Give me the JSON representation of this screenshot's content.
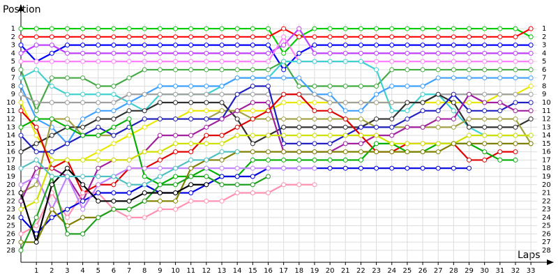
{
  "chart_data": {
    "type": "line",
    "x_label": "Laps",
    "y_label": "Position",
    "x": [
      0,
      1,
      2,
      3,
      4,
      5,
      6,
      7,
      8,
      9,
      10,
      11,
      12,
      13,
      14,
      15,
      16,
      17,
      18,
      19,
      20,
      21,
      22,
      23,
      24,
      25,
      26,
      27,
      28,
      29,
      30,
      31,
      32,
      33
    ],
    "xlim": [
      0,
      33.4
    ],
    "xticks": [
      1,
      2,
      3,
      4,
      5,
      6,
      7,
      8,
      9,
      10,
      11,
      12,
      13,
      14,
      15,
      16,
      17,
      18,
      19,
      20,
      21,
      22,
      23,
      24,
      25,
      26,
      27,
      28,
      29,
      30,
      31,
      32,
      33
    ],
    "ylim": [
      28.6,
      0.4
    ],
    "yticks": [
      1,
      2,
      3,
      4,
      5,
      6,
      7,
      8,
      9,
      10,
      11,
      12,
      13,
      14,
      15,
      16,
      17,
      18,
      19,
      20,
      21,
      22,
      23,
      24,
      25,
      26,
      27,
      28
    ],
    "grid": true,
    "series": [
      {
        "color": "#00cc00",
        "values": [
          1,
          1,
          1,
          1,
          1,
          1,
          1,
          1,
          1,
          1,
          1,
          1,
          1,
          1,
          1,
          1,
          1,
          4,
          2,
          1,
          1,
          1,
          1,
          1,
          1,
          1,
          1,
          1,
          1,
          1,
          1,
          1,
          1,
          2
        ]
      },
      {
        "color": "#ff0000",
        "values": [
          2,
          2,
          2,
          2,
          2,
          2,
          2,
          2,
          2,
          2,
          2,
          2,
          2,
          2,
          2,
          2,
          2,
          1,
          2,
          2,
          2,
          2,
          2,
          2,
          2,
          2,
          2,
          2,
          2,
          2,
          2,
          2,
          2,
          1
        ]
      },
      {
        "color": "#0000ff",
        "values": [
          3,
          5,
          4,
          3,
          3,
          3,
          3,
          3,
          3,
          3,
          3,
          3,
          3,
          3,
          3,
          3,
          3,
          6,
          4,
          3,
          3,
          3,
          3,
          3,
          3,
          3,
          3,
          3,
          3,
          3,
          3,
          3,
          3,
          3
        ]
      },
      {
        "color": "#c040ff",
        "values": [
          4,
          3,
          3,
          4,
          4,
          4,
          4,
          4,
          4,
          4,
          4,
          4,
          4,
          4,
          4,
          4,
          4,
          3,
          1,
          4,
          4,
          4,
          4,
          4,
          4,
          4,
          4,
          4,
          4,
          4,
          4,
          4,
          4,
          4
        ]
      },
      {
        "color": "#ff80ff",
        "values": [
          5,
          5,
          5,
          5,
          5,
          5,
          5,
          5,
          5,
          5,
          5,
          5,
          5,
          5,
          5,
          5,
          5,
          2,
          5,
          5,
          5,
          5,
          5,
          5,
          5,
          5,
          5,
          5,
          5,
          5,
          5,
          5,
          5,
          5
        ]
      },
      {
        "color": "#44aa44",
        "values": [
          6,
          11,
          7,
          7,
          7,
          8,
          8,
          7,
          6,
          6,
          6,
          6,
          6,
          6,
          6,
          6,
          6,
          5,
          8,
          8,
          8,
          8,
          8,
          8,
          6,
          6,
          6,
          6,
          6,
          6,
          6,
          6,
          6,
          6
        ]
      },
      {
        "color": "#40d0d0",
        "values": [
          7,
          6,
          8,
          9,
          9,
          9,
          9,
          10,
          11,
          9,
          9,
          9,
          9,
          8,
          7,
          7,
          7,
          5,
          5,
          5,
          5,
          5,
          5,
          6,
          11,
          11,
          9,
          9,
          11,
          13,
          14,
          14,
          14,
          14
        ]
      },
      {
        "color": "#40a0ff",
        "values": [
          8,
          12,
          13,
          15,
          12,
          11,
          11,
          10,
          9,
          8,
          8,
          8,
          8,
          8,
          7,
          7,
          7,
          7,
          7,
          9,
          9,
          11,
          11,
          9,
          8,
          8,
          8,
          7,
          7,
          7,
          7,
          7,
          7,
          7
        ]
      },
      {
        "color": "#e8e800",
        "values": [
          10,
          14,
          17,
          17,
          17,
          16,
          15,
          14,
          13,
          12,
          12,
          11,
          11,
          11,
          11,
          11,
          11,
          10,
          10,
          10,
          10,
          10,
          10,
          10,
          10,
          10,
          10,
          10,
          10,
          10,
          10,
          9,
          9,
          8
        ]
      },
      {
        "color": "#a0a0a0",
        "values": [
          9,
          10,
          10,
          10,
          10,
          10,
          10,
          9,
          9,
          9,
          9,
          9,
          9,
          9,
          9,
          9,
          9,
          9,
          9,
          9,
          10,
          10,
          10,
          10,
          10,
          10,
          10,
          9,
          9,
          9,
          9,
          9,
          9,
          9
        ]
      },
      {
        "color": "#303030",
        "values": [
          16,
          15,
          14,
          13,
          13,
          12,
          12,
          11,
          11,
          10,
          10,
          10,
          10,
          10,
          12,
          15,
          14,
          13,
          13,
          13,
          13,
          13,
          13,
          12,
          12,
          10,
          10,
          9,
          10,
          13,
          13,
          13,
          13,
          12
        ]
      },
      {
        "color": "#a0a040",
        "values": [
          21,
          20,
          12,
          12,
          14,
          14,
          14,
          13,
          12,
          12,
          12,
          12,
          12,
          11,
          11,
          12,
          12,
          12,
          12,
          12,
          12,
          12,
          12,
          13,
          13,
          13,
          13,
          13,
          13,
          12,
          12,
          12,
          12,
          15
        ]
      },
      {
        "color": "#2020c0",
        "values": [
          14,
          16,
          16,
          15,
          14,
          13,
          14,
          13,
          12,
          12,
          12,
          12,
          12,
          12,
          9,
          8,
          8,
          15,
          15,
          15,
          15,
          14,
          13,
          13,
          13,
          12,
          11,
          11,
          9,
          11,
          11,
          11,
          10,
          10
        ]
      },
      {
        "color": "#a020a0",
        "values": [
          22,
          18,
          18,
          19,
          22,
          18,
          17,
          17,
          16,
          14,
          14,
          14,
          13,
          12,
          11,
          10,
          10,
          16,
          16,
          16,
          16,
          15,
          15,
          14,
          14,
          13,
          13,
          12,
          12,
          9,
          10,
          10,
          11,
          11
        ]
      },
      {
        "color": "#e00000",
        "values": [
          11,
          13,
          18,
          17,
          21,
          20,
          20,
          18,
          18,
          17,
          16,
          16,
          14,
          14,
          13,
          12,
          11,
          9,
          9,
          11,
          11,
          12,
          14,
          16,
          16,
          15,
          15,
          15,
          15,
          17,
          17,
          16,
          16,
          null
        ]
      },
      {
        "color": "#00b000",
        "values": [
          13,
          12,
          12,
          13,
          14,
          14,
          13,
          12,
          19,
          20,
          19,
          19,
          18,
          19,
          19,
          17,
          17,
          17,
          17,
          17,
          17,
          17,
          17,
          15,
          15,
          16,
          16,
          15,
          15,
          15,
          16,
          17,
          17,
          null
        ]
      },
      {
        "color": "#ff90b0",
        "values": [
          26,
          25,
          21,
          24,
          21,
          21,
          23,
          24,
          24,
          23,
          23,
          22,
          22,
          22,
          21,
          21,
          21,
          20,
          20,
          20,
          null,
          null,
          null,
          null,
          null,
          null,
          null,
          null,
          null,
          null,
          null,
          null,
          null,
          null
        ]
      },
      {
        "color": "#0000e0",
        "values": [
          24,
          26,
          24,
          23,
          22,
          21,
          21,
          21,
          20,
          21,
          21,
          21,
          20,
          19,
          19,
          19,
          18,
          18,
          18,
          18,
          18,
          18,
          18,
          18,
          18,
          18,
          18,
          18,
          18,
          18,
          null,
          null,
          null,
          null
        ]
      },
      {
        "color": "#c080ff",
        "values": [
          20,
          19,
          23,
          19,
          23,
          20,
          19,
          18,
          18,
          18,
          18,
          18,
          18,
          18,
          18,
          18,
          18,
          18,
          18,
          18,
          null,
          null,
          null,
          null,
          null,
          null,
          null,
          null,
          null,
          null,
          null,
          null,
          null,
          null
        ]
      },
      {
        "color": "#d0e000",
        "values": [
          23,
          22,
          17,
          17,
          17,
          17,
          17,
          17,
          16,
          16,
          15,
          15,
          15,
          15,
          14,
          14,
          14,
          14,
          14,
          14,
          14,
          14,
          14,
          14,
          15,
          15,
          15,
          15,
          15,
          14,
          14,
          14,
          14,
          14
        ]
      },
      {
        "color": "#808000",
        "values": [
          27,
          27,
          23,
          25,
          24,
          24,
          23,
          23,
          22,
          22,
          22,
          18,
          17,
          17,
          16,
          16,
          16,
          16,
          16,
          16,
          16,
          16,
          16,
          16,
          16,
          16,
          16,
          16,
          15,
          15,
          15,
          15,
          15,
          15
        ]
      },
      {
        "color": "#20a020",
        "values": [
          28,
          24,
          19,
          26,
          26,
          24,
          23,
          23,
          22,
          20,
          20,
          19,
          19,
          20,
          20,
          20,
          19,
          null,
          null,
          null,
          null,
          null,
          null,
          null,
          null,
          null,
          null,
          null,
          null,
          null,
          null,
          null,
          null,
          null
        ]
      },
      {
        "color": "#000000",
        "values": [
          21,
          27,
          20,
          18,
          20,
          22,
          22,
          22,
          21,
          21,
          21,
          20,
          20,
          null,
          null,
          null,
          null,
          null,
          null,
          null,
          null,
          null,
          null,
          null,
          null,
          null,
          null,
          null,
          null,
          null,
          null,
          null,
          null,
          null
        ]
      },
      {
        "color": "#50c0c0",
        "values": [
          18,
          17,
          19,
          19,
          19,
          19,
          19,
          20,
          20,
          19,
          18,
          17,
          17,
          16,
          16,
          null,
          null,
          null,
          null,
          null,
          null,
          null,
          null,
          null,
          null,
          null,
          null,
          null,
          null,
          null,
          null,
          null,
          null,
          null
        ]
      }
    ]
  }
}
